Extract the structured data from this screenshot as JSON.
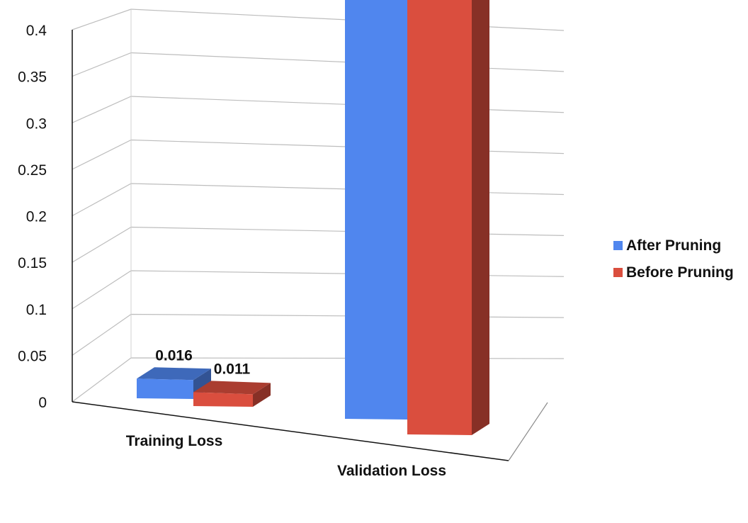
{
  "chart_data": {
    "type": "bar",
    "title": "",
    "xlabel": "",
    "ylabel": "",
    "categories": [
      "Training Loss",
      "Validation Loss"
    ],
    "series": [
      {
        "name": "After Pruning",
        "values": [
          0.016,
          0.398
        ],
        "color": "#5086EE"
      },
      {
        "name": "Before Pruning",
        "values": [
          0.011,
          0.372
        ],
        "color": "#DA4E3E"
      }
    ],
    "data_labels": [
      [
        "0.016",
        "0.398"
      ],
      [
        "0.011",
        "0.372"
      ]
    ],
    "ylim": [
      0,
      0.4
    ],
    "yticks": [
      "0",
      "0.05",
      "0.1",
      "0.15",
      "0.2",
      "0.25",
      "0.3",
      "0.35",
      "0.4"
    ],
    "grid": true,
    "legend_position": "right",
    "style": "3d-clustered-column"
  }
}
